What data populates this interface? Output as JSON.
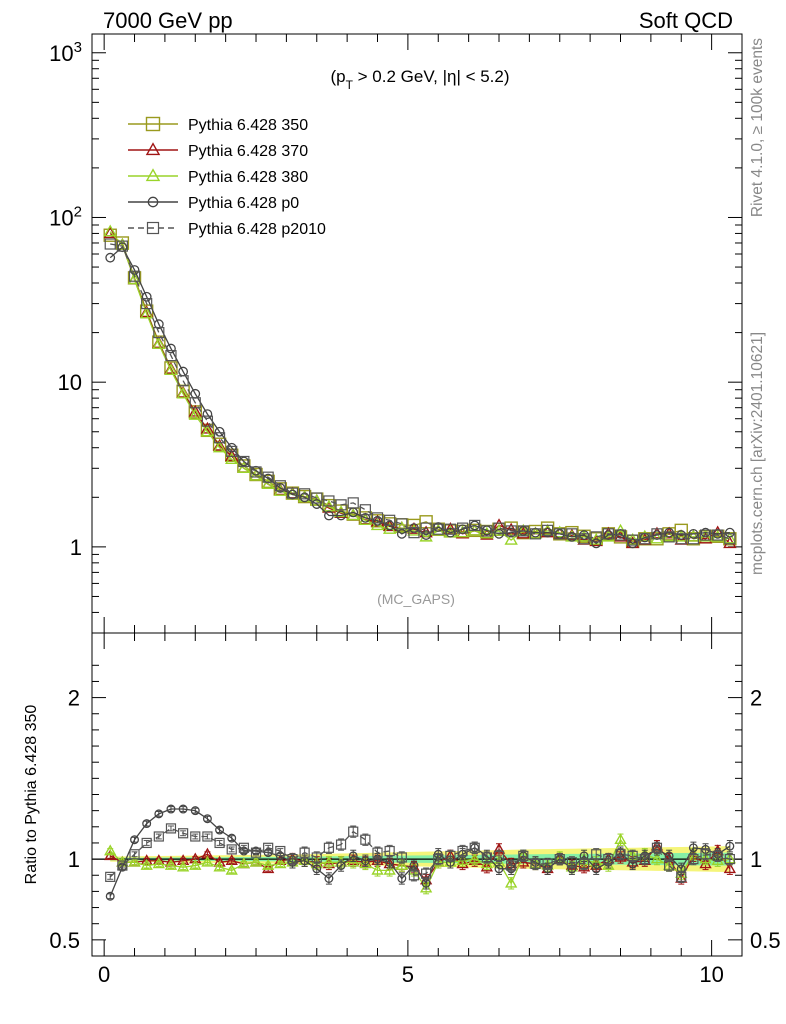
{
  "header": {
    "left_title": "7000 GeV pp",
    "right_title": "Soft QCD"
  },
  "side_labels": {
    "rivet": "Rivet 4.1.0, ≥ 100k events",
    "mcplots": "mcplots.cern.ch [arXiv:2401.10621]"
  },
  "chart_data": [
    {
      "type": "line",
      "panel": "main",
      "title": "",
      "annotation_cut": "(p_T > 0.2 GeV, |η| < 5.2)",
      "watermark": "(MC_GAPS)",
      "yscale": "log",
      "xlim": [
        -0.2,
        10.5
      ],
      "ylim": [
        0.3,
        1300
      ],
      "ytick_labels": [
        "1",
        "10",
        "10^2",
        "10^3"
      ],
      "legend_position": "top-left",
      "x": [
        0.1,
        0.3,
        0.5,
        0.7,
        0.9,
        1.1,
        1.3,
        1.5,
        1.7,
        1.9,
        2.1,
        2.3,
        2.5,
        2.7,
        2.9,
        3.1,
        3.3,
        3.5,
        3.7,
        3.9,
        4.1,
        4.3,
        4.5,
        4.7,
        4.9,
        5.1,
        5.3,
        5.5,
        5.7,
        5.9,
        6.1,
        6.3,
        6.5,
        6.7,
        6.9,
        7.1,
        7.3,
        7.5,
        7.7,
        7.9,
        8.1,
        8.3,
        8.5,
        8.7,
        8.9,
        9.1,
        9.3,
        9.5,
        9.7,
        9.9,
        10.1,
        10.3
      ],
      "series": [
        {
          "name": "Pythia 6.428 350",
          "color": "#9a9a1e",
          "marker": "square",
          "linestyle": "solid",
          "values": [
            78,
            70,
            43,
            27,
            17.5,
            12.2,
            8.8,
            6.6,
            5.1,
            4.2,
            3.6,
            3.1,
            2.75,
            2.5,
            2.25,
            2.12,
            2.02,
            1.95,
            1.78,
            1.65,
            1.58,
            1.5,
            1.44,
            1.38,
            1.36,
            1.35,
            1.42,
            1.28,
            1.25,
            1.24,
            1.26,
            1.24,
            1.28,
            1.3,
            1.22,
            1.24,
            1.3,
            1.2,
            1.22,
            1.16,
            1.12,
            1.2,
            1.15,
            1.08,
            1.12,
            1.12,
            1.2,
            1.26,
            1.12,
            1.15,
            1.16,
            1.12
          ]
        },
        {
          "name": "Pythia 6.428 370",
          "color": "#a01414",
          "marker": "triangle",
          "linestyle": "solid",
          "values": [
            80,
            68,
            42,
            26.5,
            17.2,
            12.0,
            8.6,
            6.6,
            5.2,
            4.1,
            3.55,
            3.0,
            2.7,
            2.4,
            2.2,
            2.1,
            2.0,
            1.9,
            1.72,
            1.6,
            1.55,
            1.46,
            1.42,
            1.33,
            1.3,
            1.28,
            1.22,
            1.25,
            1.28,
            1.2,
            1.25,
            1.18,
            1.35,
            1.27,
            1.2,
            1.2,
            1.22,
            1.2,
            1.17,
            1.1,
            1.08,
            1.2,
            1.15,
            1.05,
            1.1,
            1.2,
            1.2,
            1.1,
            1.15,
            1.12,
            1.22,
            1.05
          ]
        },
        {
          "name": "Pythia 6.428 380",
          "color": "#9ad42a",
          "marker": "triangle",
          "linestyle": "solid",
          "values": [
            82,
            68,
            42,
            26,
            17.0,
            11.8,
            8.5,
            6.3,
            5.0,
            4.0,
            3.4,
            3.0,
            2.7,
            2.4,
            2.18,
            2.08,
            2.0,
            1.9,
            1.75,
            1.62,
            1.55,
            1.45,
            1.35,
            1.28,
            1.3,
            1.25,
            1.15,
            1.25,
            1.22,
            1.22,
            1.25,
            1.2,
            1.25,
            1.1,
            1.25,
            1.2,
            1.25,
            1.22,
            1.15,
            1.15,
            1.1,
            1.15,
            1.25,
            1.1,
            1.15,
            1.12,
            1.15,
            1.15,
            1.15,
            1.15,
            1.15,
            1.12
          ]
        },
        {
          "name": "Pythia 6.428 p0",
          "color": "#444444",
          "marker": "circle",
          "linestyle": "solid",
          "values": [
            57,
            66,
            48,
            33,
            22.5,
            16.0,
            11.6,
            8.5,
            6.4,
            5.0,
            4.0,
            3.3,
            2.9,
            2.6,
            2.28,
            2.08,
            2.0,
            1.82,
            1.55,
            1.55,
            1.62,
            1.5,
            1.44,
            1.35,
            1.2,
            1.3,
            1.18,
            1.32,
            1.22,
            1.28,
            1.35,
            1.26,
            1.2,
            1.22,
            1.25,
            1.22,
            1.22,
            1.2,
            1.15,
            1.18,
            1.05,
            1.18,
            1.2,
            1.05,
            1.14,
            1.18,
            1.22,
            1.18,
            1.2,
            1.22,
            1.2,
            1.22
          ]
        },
        {
          "name": "Pythia 6.428 p2010",
          "color": "#555555",
          "marker": "square-open",
          "linestyle": "dashed",
          "values": [
            69,
            67,
            44,
            30,
            20.0,
            14.5,
            10.2,
            7.5,
            5.8,
            4.6,
            3.8,
            3.3,
            2.85,
            2.65,
            2.35,
            2.12,
            2.1,
            1.98,
            1.9,
            1.8,
            1.85,
            1.68,
            1.5,
            1.45,
            1.38,
            1.22,
            1.3,
            1.28,
            1.28,
            1.3,
            1.35,
            1.25,
            1.3,
            1.25,
            1.25,
            1.2,
            1.26,
            1.2,
            1.2,
            1.12,
            1.15,
            1.2,
            1.18,
            1.1,
            1.12,
            1.2,
            1.15,
            1.12,
            1.12,
            1.18,
            1.18,
            1.12
          ]
        }
      ]
    },
    {
      "type": "line",
      "panel": "ratio",
      "ylabel": "Ratio to Pythia 6.428 350",
      "xlim": [
        -0.2,
        10.5
      ],
      "ylim": [
        0.4,
        2.4
      ],
      "ytick_labels": [
        "0.5",
        "1",
        "2"
      ],
      "xtick_labels": [
        "0",
        "5",
        "10"
      ],
      "reference_band": {
        "inner_color": "#86f0a6",
        "outer_color": "#f5f57a"
      },
      "x": [
        0.1,
        0.3,
        0.5,
        0.7,
        0.9,
        1.1,
        1.3,
        1.5,
        1.7,
        1.9,
        2.1,
        2.3,
        2.5,
        2.7,
        2.9,
        3.1,
        3.3,
        3.5,
        3.7,
        3.9,
        4.1,
        4.3,
        4.5,
        4.7,
        4.9,
        5.1,
        5.3,
        5.5,
        5.7,
        5.9,
        6.1,
        6.3,
        6.5,
        6.7,
        6.9,
        7.1,
        7.3,
        7.5,
        7.7,
        7.9,
        8.1,
        8.3,
        8.5,
        8.7,
        8.9,
        9.1,
        9.3,
        9.5,
        9.7,
        9.9,
        10.1,
        10.3
      ],
      "series": [
        {
          "name": "Pythia 6.428 370",
          "color": "#a01414",
          "marker": "triangle",
          "linestyle": "solid",
          "values": [
            1.02,
            0.98,
            0.98,
            0.99,
            0.99,
            0.98,
            0.99,
            1.0,
            1.03,
            0.98,
            0.99,
            0.97,
            0.98,
            0.94,
            0.99,
            1.0,
            0.99,
            0.98,
            0.97,
            0.98,
            0.99,
            0.98,
            0.99,
            0.97,
            0.96,
            0.95,
            0.87,
            0.98,
            1.02,
            0.97,
            0.99,
            0.95,
            1.06,
            0.97,
            0.98,
            0.97,
            0.94,
            1.0,
            0.96,
            0.95,
            0.96,
            1.0,
            1.01,
            0.98,
            0.99,
            1.08,
            1.0,
            0.88,
            1.02,
            0.97,
            1.05,
            0.94
          ]
        },
        {
          "name": "Pythia 6.428 380",
          "color": "#9ad42a",
          "marker": "triangle",
          "linestyle": "solid",
          "values": [
            1.05,
            0.98,
            0.98,
            0.96,
            0.97,
            0.96,
            0.95,
            0.96,
            0.98,
            0.95,
            0.93,
            0.97,
            0.98,
            0.96,
            0.97,
            0.98,
            0.99,
            0.97,
            0.98,
            0.98,
            0.98,
            0.97,
            0.93,
            0.93,
            0.96,
            0.93,
            0.82,
            0.98,
            0.98,
            0.99,
            1.0,
            0.97,
            0.98,
            0.85,
            1.02,
            0.97,
            0.96,
            1.01,
            0.95,
            0.99,
            0.98,
            0.96,
            1.12,
            1.02,
            1.03,
            1.0,
            0.96,
            0.91,
            1.03,
            1.0,
            0.99,
            1.0
          ]
        },
        {
          "name": "Pythia 6.428 p0",
          "color": "#444444",
          "marker": "circle",
          "linestyle": "solid",
          "values": [
            0.77,
            0.95,
            1.12,
            1.22,
            1.28,
            1.31,
            1.31,
            1.3,
            1.25,
            1.18,
            1.13,
            1.05,
            1.05,
            1.04,
            1.02,
            0.98,
            0.99,
            0.94,
            0.88,
            0.96,
            1.02,
            0.99,
            1.0,
            0.98,
            0.88,
            0.96,
            0.85,
            1.03,
            0.98,
            1.03,
            1.07,
            1.02,
            0.94,
            0.94,
            1.02,
            0.98,
            0.94,
            1.0,
            0.94,
            1.02,
            0.94,
            0.98,
            1.04,
            0.97,
            1.02,
            1.06,
            1.02,
            0.94,
            1.07,
            1.06,
            1.03,
            1.08
          ]
        },
        {
          "name": "Pythia 6.428 p2010",
          "color": "#555555",
          "marker": "square-open",
          "linestyle": "dashed",
          "values": [
            0.89,
            0.96,
            1.03,
            1.1,
            1.14,
            1.19,
            1.16,
            1.14,
            1.14,
            1.1,
            1.06,
            1.07,
            1.04,
            1.07,
            1.05,
            1.0,
            1.04,
            1.01,
            1.07,
            1.09,
            1.17,
            1.12,
            1.04,
            1.05,
            1.01,
            0.9,
            0.91,
            1.0,
            1.02,
            1.05,
            1.07,
            1.01,
            1.02,
            0.96,
            1.02,
            0.97,
            0.97,
            1.0,
            0.98,
            0.97,
            1.03,
            1.0,
            1.03,
            1.02,
            1.0,
            1.07,
            0.96,
            0.89,
            1.0,
            1.03,
            1.02,
            1.0
          ]
        }
      ]
    }
  ]
}
